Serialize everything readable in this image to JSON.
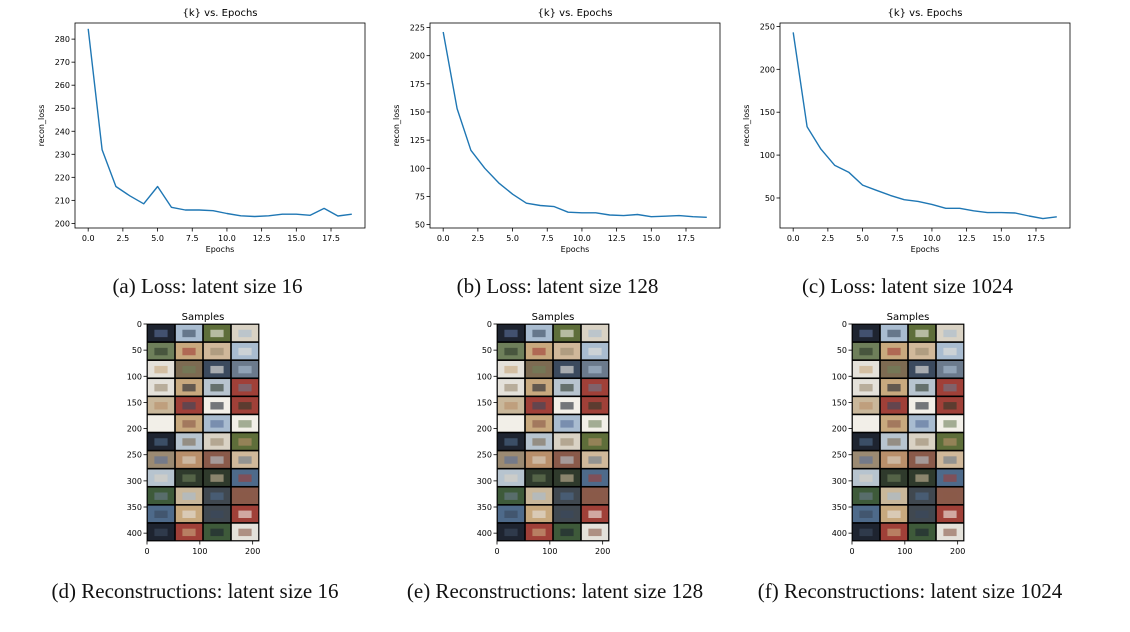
{
  "chart_data": [
    {
      "type": "line",
      "title": "{k} vs. Epochs",
      "xlabel": "Epochs",
      "ylabel": "recon_loss",
      "x": [
        0,
        1,
        2,
        3,
        4,
        5,
        6,
        7,
        8,
        9,
        10,
        11,
        12,
        13,
        14,
        15,
        16,
        17,
        18,
        19
      ],
      "y": [
        284.5,
        232.0,
        216.0,
        212.0,
        208.5,
        216.0,
        207.0,
        205.8,
        205.8,
        205.5,
        204.3,
        203.3,
        203.0,
        203.3,
        204.0,
        204.0,
        203.5,
        206.5,
        203.2,
        204.0
      ],
      "xlim": [
        -0.95,
        19.95
      ],
      "ylim": [
        198,
        287
      ],
      "xticks": [
        0.0,
        2.5,
        5.0,
        7.5,
        10.0,
        12.5,
        15.0,
        17.5
      ],
      "xtick_labels": [
        "0.0",
        "2.5",
        "5.0",
        "7.5",
        "10.0",
        "12.5",
        "15.0",
        "17.5"
      ],
      "yticks": [
        200,
        210,
        220,
        230,
        240,
        250,
        260,
        270,
        280
      ],
      "ytick_labels": [
        "200",
        "210",
        "220",
        "230",
        "240",
        "250",
        "260",
        "270",
        "280"
      ],
      "color": "#1f77b4",
      "grid": false
    },
    {
      "type": "line",
      "title": "{k} vs. Epochs",
      "xlabel": "Epochs",
      "ylabel": "recon_loss",
      "x": [
        0,
        1,
        2,
        3,
        4,
        5,
        6,
        7,
        8,
        9,
        10,
        11,
        12,
        13,
        14,
        15,
        16,
        17,
        18,
        19
      ],
      "y": [
        221,
        153,
        116,
        100,
        87,
        77,
        69,
        67,
        66,
        61,
        60.5,
        60.5,
        58.5,
        58,
        59,
        57,
        57.5,
        58,
        57,
        56.5
      ],
      "xlim": [
        -0.95,
        19.95
      ],
      "ylim": [
        47,
        229
      ],
      "xticks": [
        0.0,
        2.5,
        5.0,
        7.5,
        10.0,
        12.5,
        15.0,
        17.5
      ],
      "xtick_labels": [
        "0.0",
        "2.5",
        "5.0",
        "7.5",
        "10.0",
        "12.5",
        "15.0",
        "17.5"
      ],
      "yticks": [
        50,
        75,
        100,
        125,
        150,
        175,
        200,
        225
      ],
      "ytick_labels": [
        "50",
        "75",
        "100",
        "125",
        "150",
        "175",
        "200",
        "225"
      ],
      "color": "#1f77b4",
      "grid": false
    },
    {
      "type": "line",
      "title": "{k} vs. Epochs",
      "xlabel": "Epochs",
      "ylabel": "recon_loss",
      "x": [
        0,
        1,
        2,
        3,
        4,
        5,
        6,
        7,
        8,
        9,
        10,
        11,
        12,
        13,
        14,
        15,
        16,
        17,
        18,
        19
      ],
      "y": [
        243,
        133,
        107,
        88,
        80,
        65,
        59,
        53,
        48,
        46,
        42.5,
        38,
        38,
        35,
        33,
        33,
        32.5,
        29,
        26,
        28
      ],
      "xlim": [
        -0.95,
        19.95
      ],
      "ylim": [
        15,
        254
      ],
      "xticks": [
        0.0,
        2.5,
        5.0,
        7.5,
        10.0,
        12.5,
        15.0,
        17.5
      ],
      "xtick_labels": [
        "0.0",
        "2.5",
        "5.0",
        "7.5",
        "10.0",
        "12.5",
        "15.0",
        "17.5"
      ],
      "yticks": [
        50,
        100,
        150,
        200,
        250
      ],
      "ytick_labels": [
        "50",
        "100",
        "150",
        "200",
        "250"
      ],
      "color": "#1f77b4",
      "grid": false
    },
    {
      "type": "heatmap",
      "title": "Samples",
      "xlim": [
        0,
        212
      ],
      "ylim": [
        0,
        415
      ],
      "xticks": [
        0,
        100,
        200
      ],
      "xtick_labels": [
        "0",
        "100",
        "200"
      ],
      "yticks": [
        0,
        50,
        100,
        150,
        200,
        250,
        300,
        350,
        400
      ],
      "ytick_labels": [
        "0",
        "50",
        "100",
        "150",
        "200",
        "250",
        "300",
        "350",
        "400"
      ],
      "grid_rows": 12,
      "grid_cols": 4,
      "image_description": "reconstructed image samples (blurry)"
    },
    {
      "type": "heatmap",
      "title": "Samples",
      "xlim": [
        0,
        212
      ],
      "ylim": [
        0,
        415
      ],
      "xticks": [
        0,
        100,
        200
      ],
      "xtick_labels": [
        "0",
        "100",
        "200"
      ],
      "yticks": [
        0,
        50,
        100,
        150,
        200,
        250,
        300,
        350,
        400
      ],
      "ytick_labels": [
        "0",
        "50",
        "100",
        "150",
        "200",
        "250",
        "300",
        "350",
        "400"
      ],
      "grid_rows": 12,
      "grid_cols": 4
    },
    {
      "type": "heatmap",
      "title": "Samples",
      "xlim": [
        0,
        212
      ],
      "ylim": [
        0,
        415
      ],
      "xticks": [
        0,
        100,
        200
      ],
      "xtick_labels": [
        "0",
        "100",
        "200"
      ],
      "yticks": [
        0,
        50,
        100,
        150,
        200,
        250,
        300,
        350,
        400
      ],
      "ytick_labels": [
        "0",
        "50",
        "100",
        "150",
        "200",
        "250",
        "300",
        "350",
        "400"
      ],
      "grid_rows": 12,
      "grid_cols": 4
    }
  ],
  "captions": {
    "a": "(a) Loss: latent size 16",
    "b": "(b) Loss: latent size 128",
    "c": "(c) Loss: latent size 1024",
    "d": "(d) Reconstructions: latent size 16",
    "e": "(e) Reconstructions: latent size 128",
    "f": "(f) Reconstructions: latent size 1024"
  },
  "palette": [
    "#6b7a8c",
    "#c9b79a",
    "#3b4a5e",
    "#8fa0b3",
    "#d9d2c4",
    "#5e6e3a",
    "#7d6b52",
    "#a9bcd0",
    "#2f3a2c",
    "#b98f6a",
    "#e4e1da",
    "#4e6a8a",
    "#9b8a72",
    "#3e5a3a",
    "#c8a97e",
    "#1e2430",
    "#8a5a4a",
    "#b7c4cf",
    "#f2efe8",
    "#6e7f5a",
    "#a04038",
    "#5a6f9a",
    "#d0b89a",
    "#404850"
  ],
  "style": {
    "axis_color": "#000000",
    "background": "#ffffff"
  }
}
